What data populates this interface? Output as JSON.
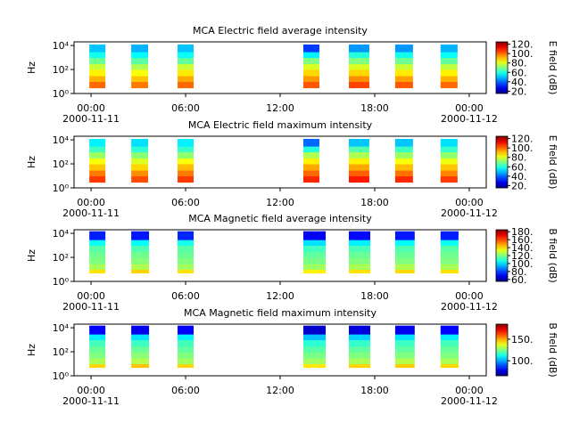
{
  "chart_data": [
    {
      "type": "heatmap",
      "title": "MCA  Electric field average intensity",
      "ylabel": "Hz",
      "clabel": "E field (dB)",
      "xlim": [
        -1.08,
        25.08
      ],
      "xticks": [
        {
          "value": 0,
          "label": "00:00"
        },
        {
          "value": 6,
          "label": "06:00"
        },
        {
          "value": 12,
          "label": "12:00"
        },
        {
          "value": 18,
          "label": "18:00"
        },
        {
          "value": 24,
          "label": "00:00"
        }
      ],
      "xtick_sublabels": [
        {
          "value": 0,
          "label": "2000-11-11"
        },
        {
          "value": 24,
          "label": "2000-11-12"
        }
      ],
      "log_y": true,
      "ylim": [
        1,
        20000
      ],
      "yticks": [
        {
          "value": 1,
          "label": "10⁰"
        },
        {
          "value": 100,
          "label": "10²"
        },
        {
          "value": 10000,
          "label": "10⁴"
        }
      ],
      "clim": [
        15,
        125
      ],
      "cticks": [
        {
          "value": 20,
          "label": "20."
        },
        {
          "value": 40,
          "label": "40."
        },
        {
          "value": 60,
          "label": "60."
        },
        {
          "value": 80,
          "label": "80."
        },
        {
          "value": 100,
          "label": "100."
        },
        {
          "value": 120,
          "label": "120."
        }
      ],
      "blocks": [
        [
          -0.11,
          0.91
        ],
        [
          2.55,
          3.62
        ],
        [
          5.49,
          6.51
        ],
        [
          13.47,
          14.49
        ],
        [
          16.36,
          17.66
        ],
        [
          19.3,
          20.43
        ],
        [
          22.18,
          23.26
        ]
      ],
      "freq_edges": [
        3,
        10,
        30,
        100,
        300,
        1000,
        3000,
        12000
      ],
      "values": [
        [
          100,
          92,
          85,
          78,
          68,
          58,
          50
        ],
        [
          98,
          90,
          83,
          75,
          66,
          56,
          48
        ],
        [
          100,
          93,
          86,
          78,
          67,
          57,
          50
        ],
        [
          102,
          95,
          88,
          80,
          70,
          55,
          35
        ],
        [
          104,
          96,
          88,
          80,
          70,
          60,
          45
        ],
        [
          102,
          94,
          86,
          78,
          68,
          58,
          45
        ],
        [
          100,
          92,
          85,
          77,
          67,
          57,
          48
        ]
      ]
    },
    {
      "type": "heatmap",
      "title": "MCA  Electric field maximum intensity",
      "ylabel": "Hz",
      "clabel": "E field (dB)",
      "xlim": [
        -1.08,
        25.08
      ],
      "xticks": [
        {
          "value": 0,
          "label": "00:00"
        },
        {
          "value": 6,
          "label": "06:00"
        },
        {
          "value": 12,
          "label": "12:00"
        },
        {
          "value": 18,
          "label": "18:00"
        },
        {
          "value": 24,
          "label": "00:00"
        }
      ],
      "xtick_sublabels": [
        {
          "value": 0,
          "label": "2000-11-11"
        },
        {
          "value": 24,
          "label": "2000-11-12"
        }
      ],
      "log_y": true,
      "ylim": [
        1,
        20000
      ],
      "yticks": [
        {
          "value": 1,
          "label": "10⁰"
        },
        {
          "value": 100,
          "label": "10²"
        },
        {
          "value": 10000,
          "label": "10⁴"
        }
      ],
      "clim": [
        15,
        125
      ],
      "cticks": [
        {
          "value": 20,
          "label": "20."
        },
        {
          "value": 40,
          "label": "40."
        },
        {
          "value": 60,
          "label": "60."
        },
        {
          "value": 80,
          "label": "80."
        },
        {
          "value": 100,
          "label": "100."
        },
        {
          "value": 120,
          "label": "120."
        }
      ],
      "blocks": [
        [
          -0.11,
          0.91
        ],
        [
          2.55,
          3.62
        ],
        [
          5.49,
          6.51
        ],
        [
          13.47,
          14.49
        ],
        [
          16.36,
          17.66
        ],
        [
          19.3,
          20.43
        ],
        [
          22.18,
          23.26
        ]
      ],
      "freq_edges": [
        3,
        10,
        30,
        100,
        300,
        1000,
        3000,
        12000
      ],
      "values": [
        [
          105,
          98,
          90,
          83,
          73,
          63,
          55
        ],
        [
          103,
          96,
          88,
          80,
          71,
          61,
          53
        ],
        [
          105,
          98,
          91,
          83,
          72,
          62,
          55
        ],
        [
          107,
          100,
          93,
          85,
          75,
          60,
          40
        ],
        [
          109,
          101,
          93,
          85,
          75,
          65,
          50
        ],
        [
          107,
          99,
          91,
          83,
          73,
          63,
          50
        ],
        [
          105,
          97,
          90,
          82,
          72,
          62,
          53
        ]
      ]
    },
    {
      "type": "heatmap",
      "title": "MCA  Magnetic field average intensity",
      "ylabel": "Hz",
      "clabel": "B field (dB)",
      "xlim": [
        -1.08,
        25.08
      ],
      "xticks": [
        {
          "value": 0,
          "label": "00:00"
        },
        {
          "value": 6,
          "label": "06:00"
        },
        {
          "value": 12,
          "label": "12:00"
        },
        {
          "value": 18,
          "label": "18:00"
        },
        {
          "value": 24,
          "label": "00:00"
        }
      ],
      "xtick_sublabels": [
        {
          "value": 0,
          "label": "2000-11-11"
        },
        {
          "value": 24,
          "label": "2000-11-12"
        }
      ],
      "log_y": true,
      "ylim": [
        1,
        20000
      ],
      "yticks": [
        {
          "value": 1,
          "label": "10⁰"
        },
        {
          "value": 100,
          "label": "10²"
        },
        {
          "value": 10000,
          "label": "10⁴"
        }
      ],
      "clim": [
        55,
        185
      ],
      "cticks": [
        {
          "value": 60,
          "label": "60."
        },
        {
          "value": 80,
          "label": "80."
        },
        {
          "value": 100,
          "label": "100."
        },
        {
          "value": 120,
          "label": "120."
        },
        {
          "value": 140,
          "label": "140."
        },
        {
          "value": 160,
          "label": "160."
        },
        {
          "value": 180,
          "label": "180."
        }
      ],
      "blocks": [
        [
          -0.11,
          0.91
        ],
        [
          2.55,
          3.68
        ],
        [
          5.49,
          6.51
        ],
        [
          13.47,
          14.89
        ],
        [
          16.36,
          17.72
        ],
        [
          19.3,
          20.54
        ],
        [
          22.18,
          23.32
        ]
      ],
      "freq_edges": [
        5,
        10,
        30,
        100,
        300,
        1000,
        3000,
        15000
      ],
      "values": [
        [
          140,
          125,
          120,
          118,
          115,
          105,
          75
        ],
        [
          142,
          126,
          121,
          118,
          114,
          104,
          74
        ],
        [
          140,
          124,
          120,
          117,
          115,
          106,
          76
        ],
        [
          138,
          124,
          119,
          116,
          112,
          100,
          70
        ],
        [
          140,
          125,
          120,
          117,
          113,
          102,
          72
        ],
        [
          141,
          126,
          120,
          117,
          114,
          104,
          74
        ],
        [
          140,
          125,
          120,
          118,
          115,
          105,
          75
        ]
      ]
    },
    {
      "type": "heatmap",
      "title": "MCA  Magnetic field maximum intensity",
      "ylabel": "Hz",
      "clabel": "B field (dB)",
      "xlim": [
        -1.08,
        25.08
      ],
      "xticks": [
        {
          "value": 0,
          "label": "00:00"
        },
        {
          "value": 6,
          "label": "06:00"
        },
        {
          "value": 12,
          "label": "12:00"
        },
        {
          "value": 18,
          "label": "18:00"
        },
        {
          "value": 24,
          "label": "00:00"
        }
      ],
      "xtick_sublabels": [
        {
          "value": 0,
          "label": "2000-11-11"
        },
        {
          "value": 24,
          "label": "2000-11-12"
        }
      ],
      "log_y": true,
      "ylim": [
        1,
        20000
      ],
      "yticks": [
        {
          "value": 1,
          "label": "10⁰"
        },
        {
          "value": 100,
          "label": "10²"
        },
        {
          "value": 10000,
          "label": "10⁴"
        }
      ],
      "clim": [
        65,
        185
      ],
      "cticks": [
        {
          "value": 100,
          "label": "100."
        },
        {
          "value": 150,
          "label": "150."
        }
      ],
      "blocks": [
        [
          -0.11,
          0.91
        ],
        [
          2.55,
          3.68
        ],
        [
          5.49,
          6.51
        ],
        [
          13.47,
          14.89
        ],
        [
          16.36,
          17.72
        ],
        [
          19.3,
          20.54
        ],
        [
          22.18,
          23.32
        ]
      ],
      "freq_edges": [
        5,
        10,
        30,
        100,
        300,
        1000,
        3000,
        15000
      ],
      "values": [
        [
          145,
          130,
          125,
          122,
          118,
          108,
          80
        ],
        [
          147,
          131,
          126,
          122,
          117,
          107,
          78
        ],
        [
          145,
          129,
          125,
          121,
          118,
          109,
          80
        ],
        [
          143,
          129,
          124,
          120,
          115,
          103,
          74
        ],
        [
          145,
          130,
          125,
          121,
          116,
          105,
          76
        ],
        [
          146,
          131,
          125,
          121,
          117,
          107,
          78
        ],
        [
          145,
          130,
          125,
          122,
          118,
          108,
          80
        ]
      ]
    }
  ]
}
